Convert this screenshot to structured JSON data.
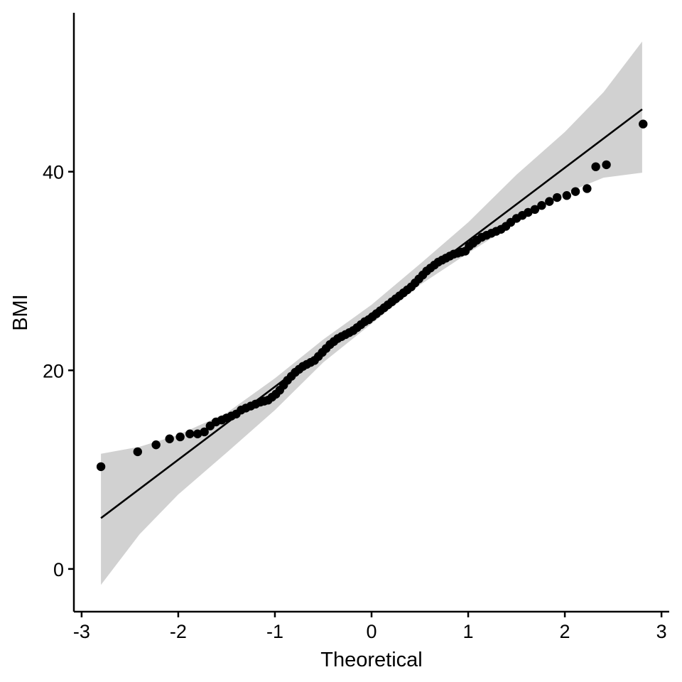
{
  "chart_data": {
    "type": "scatter",
    "subtype": "qq-plot",
    "title": "",
    "xlabel": "Theoretical",
    "ylabel": "BMI",
    "xlim": [
      -3.08,
      3.08
    ],
    "ylim": [
      -4.3,
      56.0
    ],
    "x_ticks": [
      -3,
      -2,
      -1,
      0,
      1,
      2,
      3
    ],
    "y_ticks": [
      0,
      20,
      40
    ],
    "grid": false,
    "legend": "none",
    "reference_line": {
      "intercept": 25.7,
      "slope": 7.35,
      "x_range": [
        -2.8,
        2.8
      ]
    },
    "confidence_band": [
      {
        "x": -2.8,
        "lower": -1.6,
        "upper": 11.6
      },
      {
        "x": -2.4,
        "lower": 3.5,
        "upper": 12.3
      },
      {
        "x": -2.0,
        "lower": 7.5,
        "upper": 13.5
      },
      {
        "x": -1.5,
        "lower": 11.7,
        "upper": 15.7
      },
      {
        "x": -1.0,
        "lower": 16.0,
        "upper": 19.2
      },
      {
        "x": -0.5,
        "lower": 20.8,
        "upper": 23.1
      },
      {
        "x": 0.0,
        "lower": 24.7,
        "upper": 26.6
      },
      {
        "x": 0.5,
        "lower": 28.6,
        "upper": 30.7
      },
      {
        "x": 1.0,
        "lower": 31.8,
        "upper": 34.9
      },
      {
        "x": 1.5,
        "lower": 34.9,
        "upper": 39.7
      },
      {
        "x": 2.0,
        "lower": 37.8,
        "upper": 44.0
      },
      {
        "x": 2.4,
        "lower": 39.4,
        "upper": 48.0
      },
      {
        "x": 2.8,
        "lower": 39.9,
        "upper": 53.1
      }
    ],
    "points": [
      [
        -2.8,
        10.3
      ],
      [
        -2.42,
        11.8
      ],
      [
        -2.23,
        12.5
      ],
      [
        -2.09,
        13.1
      ],
      [
        -1.98,
        13.3
      ],
      [
        -1.88,
        13.6
      ],
      [
        -1.8,
        13.6
      ],
      [
        -1.73,
        13.8
      ],
      [
        -1.67,
        14.4
      ],
      [
        -1.61,
        14.8
      ],
      [
        -1.55,
        15.0
      ],
      [
        -1.5,
        15.2
      ],
      [
        -1.45,
        15.4
      ],
      [
        -1.4,
        15.6
      ],
      [
        -1.35,
        16.0
      ],
      [
        -1.3,
        16.2
      ],
      [
        -1.25,
        16.4
      ],
      [
        -1.2,
        16.6
      ],
      [
        -1.15,
        16.8
      ],
      [
        -1.11,
        16.9
      ],
      [
        -1.07,
        17.0
      ],
      [
        -1.03,
        17.3
      ],
      [
        -0.99,
        17.6
      ],
      [
        -0.95,
        18.0
      ],
      [
        -0.91,
        18.5
      ],
      [
        -0.87,
        19.0
      ],
      [
        -0.83,
        19.4
      ],
      [
        -0.79,
        19.8
      ],
      [
        -0.75,
        20.1
      ],
      [
        -0.71,
        20.4
      ],
      [
        -0.67,
        20.6
      ],
      [
        -0.63,
        20.8
      ],
      [
        -0.59,
        21.0
      ],
      [
        -0.55,
        21.4
      ],
      [
        -0.51,
        21.8
      ],
      [
        -0.47,
        22.2
      ],
      [
        -0.43,
        22.6
      ],
      [
        -0.39,
        22.9
      ],
      [
        -0.35,
        23.2
      ],
      [
        -0.31,
        23.4
      ],
      [
        -0.27,
        23.6
      ],
      [
        -0.23,
        23.8
      ],
      [
        -0.19,
        24.0
      ],
      [
        -0.15,
        24.3
      ],
      [
        -0.11,
        24.6
      ],
      [
        -0.07,
        24.9
      ],
      [
        -0.03,
        25.1
      ],
      [
        0.01,
        25.4
      ],
      [
        0.05,
        25.7
      ],
      [
        0.09,
        26.0
      ],
      [
        0.13,
        26.3
      ],
      [
        0.17,
        26.6
      ],
      [
        0.21,
        26.9
      ],
      [
        0.25,
        27.2
      ],
      [
        0.29,
        27.5
      ],
      [
        0.33,
        27.8
      ],
      [
        0.37,
        28.1
      ],
      [
        0.41,
        28.4
      ],
      [
        0.45,
        28.8
      ],
      [
        0.49,
        29.2
      ],
      [
        0.53,
        29.6
      ],
      [
        0.57,
        30.0
      ],
      [
        0.61,
        30.3
      ],
      [
        0.65,
        30.6
      ],
      [
        0.69,
        30.9
      ],
      [
        0.73,
        31.1
      ],
      [
        0.77,
        31.3
      ],
      [
        0.81,
        31.5
      ],
      [
        0.85,
        31.7
      ],
      [
        0.89,
        31.8
      ],
      [
        0.93,
        31.9
      ],
      [
        0.97,
        32.0
      ],
      [
        1.01,
        32.5
      ],
      [
        1.05,
        32.8
      ],
      [
        1.09,
        33.1
      ],
      [
        1.14,
        33.4
      ],
      [
        1.19,
        33.6
      ],
      [
        1.24,
        33.8
      ],
      [
        1.29,
        34.0
      ],
      [
        1.34,
        34.2
      ],
      [
        1.39,
        34.5
      ],
      [
        1.44,
        34.9
      ],
      [
        1.5,
        35.3
      ],
      [
        1.56,
        35.6
      ],
      [
        1.62,
        35.9
      ],
      [
        1.69,
        36.2
      ],
      [
        1.76,
        36.6
      ],
      [
        1.84,
        37.0
      ],
      [
        1.92,
        37.4
      ],
      [
        2.02,
        37.6
      ],
      [
        2.11,
        38.0
      ],
      [
        2.23,
        38.3
      ],
      [
        2.32,
        40.5
      ],
      [
        2.43,
        40.7
      ],
      [
        2.81,
        44.8
      ]
    ]
  }
}
